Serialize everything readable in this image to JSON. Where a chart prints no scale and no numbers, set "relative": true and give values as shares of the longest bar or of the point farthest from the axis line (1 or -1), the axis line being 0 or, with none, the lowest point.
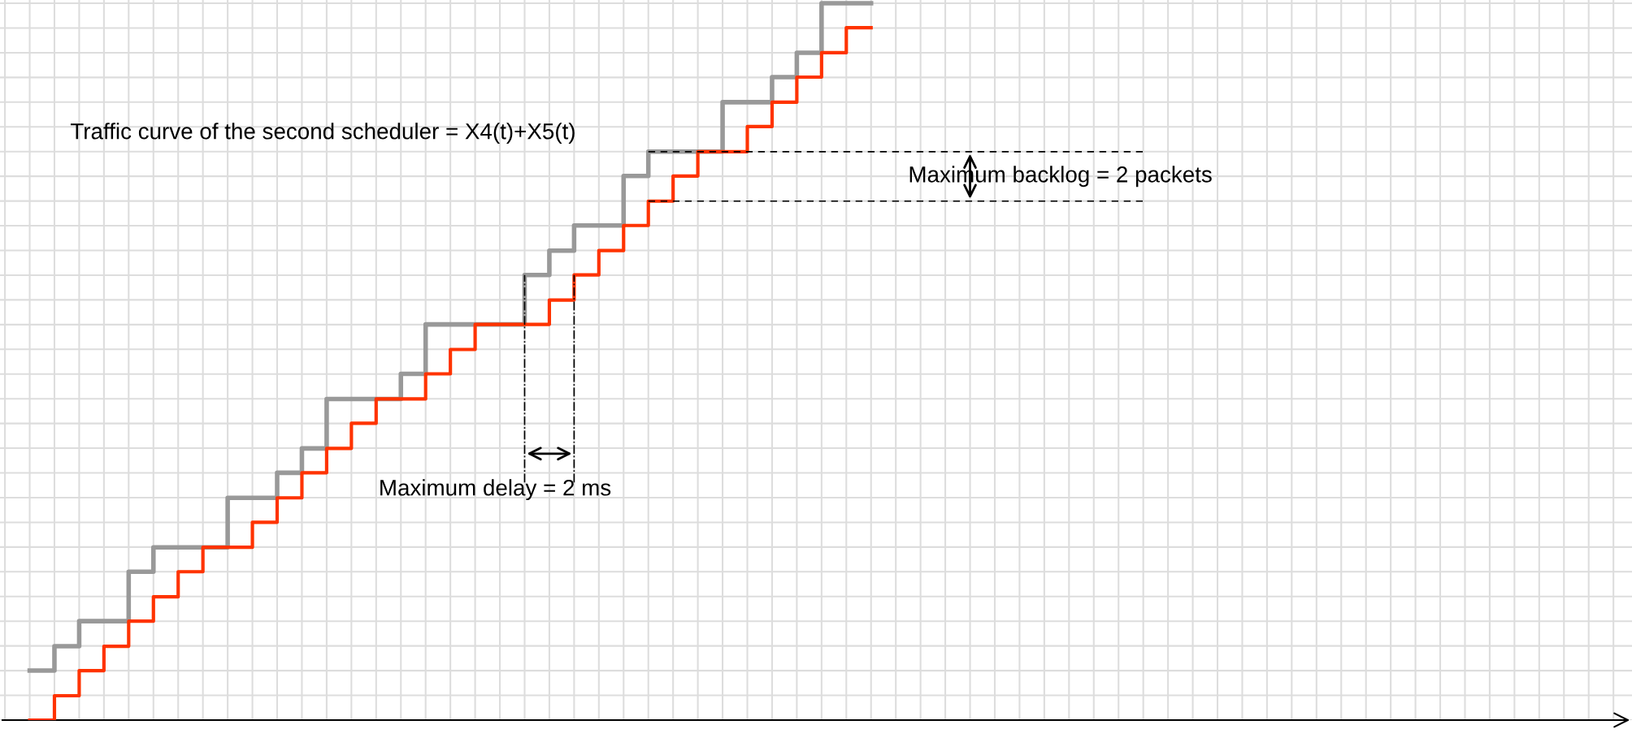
{
  "chart_data": {
    "type": "step",
    "relative": true,
    "grid": true,
    "categories": [
      null,
      null,
      null,
      null,
      null,
      null,
      null,
      null,
      null,
      null,
      null,
      null,
      null,
      null,
      null,
      null,
      null,
      null,
      null,
      null,
      null,
      null,
      null,
      null,
      null,
      null,
      null,
      null,
      null,
      null,
      null,
      null,
      null,
      null,
      null
    ],
    "series": [
      {
        "color": "#999999",
        "values": [
          0.069,
          0.103,
          0.138,
          0.138,
          0.207,
          0.241,
          0.241,
          0.241,
          0.31,
          0.31,
          0.345,
          0.379,
          0.448,
          0.448,
          0.448,
          0.483,
          0.552,
          0.552,
          0.552,
          0.552,
          0.621,
          0.655,
          0.69,
          0.69,
          0.759,
          0.793,
          0.793,
          0.793,
          0.862,
          0.862,
          0.897,
          0.931,
          1,
          1,
          1
        ]
      },
      {
        "color": "#ff3300",
        "values": [
          0,
          0.034,
          0.069,
          0.103,
          0.138,
          0.172,
          0.207,
          0.241,
          0.241,
          0.276,
          0.31,
          0.345,
          0.379,
          0.414,
          0.448,
          0.448,
          0.483,
          0.517,
          0.552,
          0.552,
          0.552,
          0.586,
          0.621,
          0.655,
          0.69,
          0.724,
          0.759,
          0.793,
          0.793,
          0.828,
          0.862,
          0.897,
          0.931,
          0.966,
          0.966
        ]
      }
    ],
    "ref_lines": [
      {
        "axis": "y",
        "value": 0.793,
        "line_style": "dashed"
      },
      {
        "axis": "y",
        "value": 0.724,
        "line_style": "dashed"
      }
    ],
    "annotations": [
      "Traffic curve of the second scheduler = X4(t)+X5(t)",
      "Maximum backlog = 2 packets",
      "Maximum delay = 2 ms"
    ]
  }
}
